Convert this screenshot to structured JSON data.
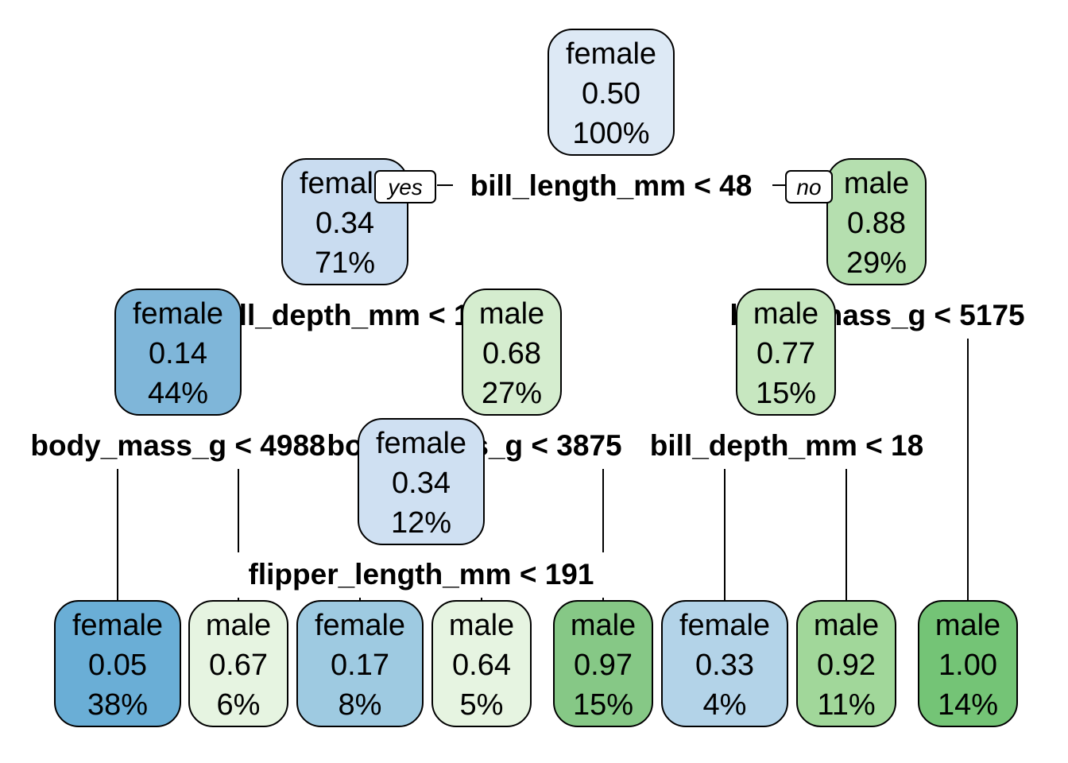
{
  "tree": {
    "branch_labels": {
      "yes": "yes",
      "no": "no"
    },
    "nodes": [
      {
        "id": "n1",
        "class": "female",
        "prob": "0.50",
        "pct": "100%",
        "fill": "#dde9f5"
      },
      {
        "id": "n2",
        "class": "female",
        "prob": "0.34",
        "pct": "71%",
        "fill": "#c9dcf0"
      },
      {
        "id": "n3",
        "class": "male",
        "prob": "0.88",
        "pct": "29%",
        "fill": "#b5dfaf"
      },
      {
        "id": "n4",
        "class": "female",
        "prob": "0.14",
        "pct": "44%",
        "fill": "#7fb6d9"
      },
      {
        "id": "n5",
        "class": "male",
        "prob": "0.68",
        "pct": "27%",
        "fill": "#d5edcf"
      },
      {
        "id": "n6",
        "class": "male",
        "prob": "0.77",
        "pct": "15%",
        "fill": "#c7e7c0"
      },
      {
        "id": "n7",
        "class": "female",
        "prob": "0.34",
        "pct": "12%",
        "fill": "#cfe0f2"
      },
      {
        "id": "l1",
        "class": "female",
        "prob": "0.05",
        "pct": "38%",
        "fill": "#6aaed6"
      },
      {
        "id": "l2",
        "class": "male",
        "prob": "0.67",
        "pct": "6%",
        "fill": "#e6f4e1"
      },
      {
        "id": "l3",
        "class": "female",
        "prob": "0.17",
        "pct": "8%",
        "fill": "#9ecae1"
      },
      {
        "id": "l4",
        "class": "male",
        "prob": "0.64",
        "pct": "5%",
        "fill": "#e6f4e1"
      },
      {
        "id": "l5",
        "class": "male",
        "prob": "0.97",
        "pct": "15%",
        "fill": "#86c886"
      },
      {
        "id": "l6",
        "class": "female",
        "prob": "0.33",
        "pct": "4%",
        "fill": "#b3d3e8"
      },
      {
        "id": "l7",
        "class": "male",
        "prob": "0.92",
        "pct": "11%",
        "fill": "#a1d79a"
      },
      {
        "id": "l8",
        "class": "male",
        "prob": "1.00",
        "pct": "14%",
        "fill": "#74c476"
      }
    ],
    "splits": [
      {
        "id": "s1",
        "label": "bill_length_mm < 48"
      },
      {
        "id": "s2",
        "label": "bill_depth_mm < 16"
      },
      {
        "id": "s3",
        "label": "body_mass_g < 5175"
      },
      {
        "id": "s4",
        "label": "body_mass_g < 4988"
      },
      {
        "id": "s5",
        "label": "body_mass_g < 3875"
      },
      {
        "id": "s6",
        "label": "bill_depth_mm < 18"
      },
      {
        "id": "s7",
        "label": "flipper_length_mm < 191"
      }
    ]
  }
}
